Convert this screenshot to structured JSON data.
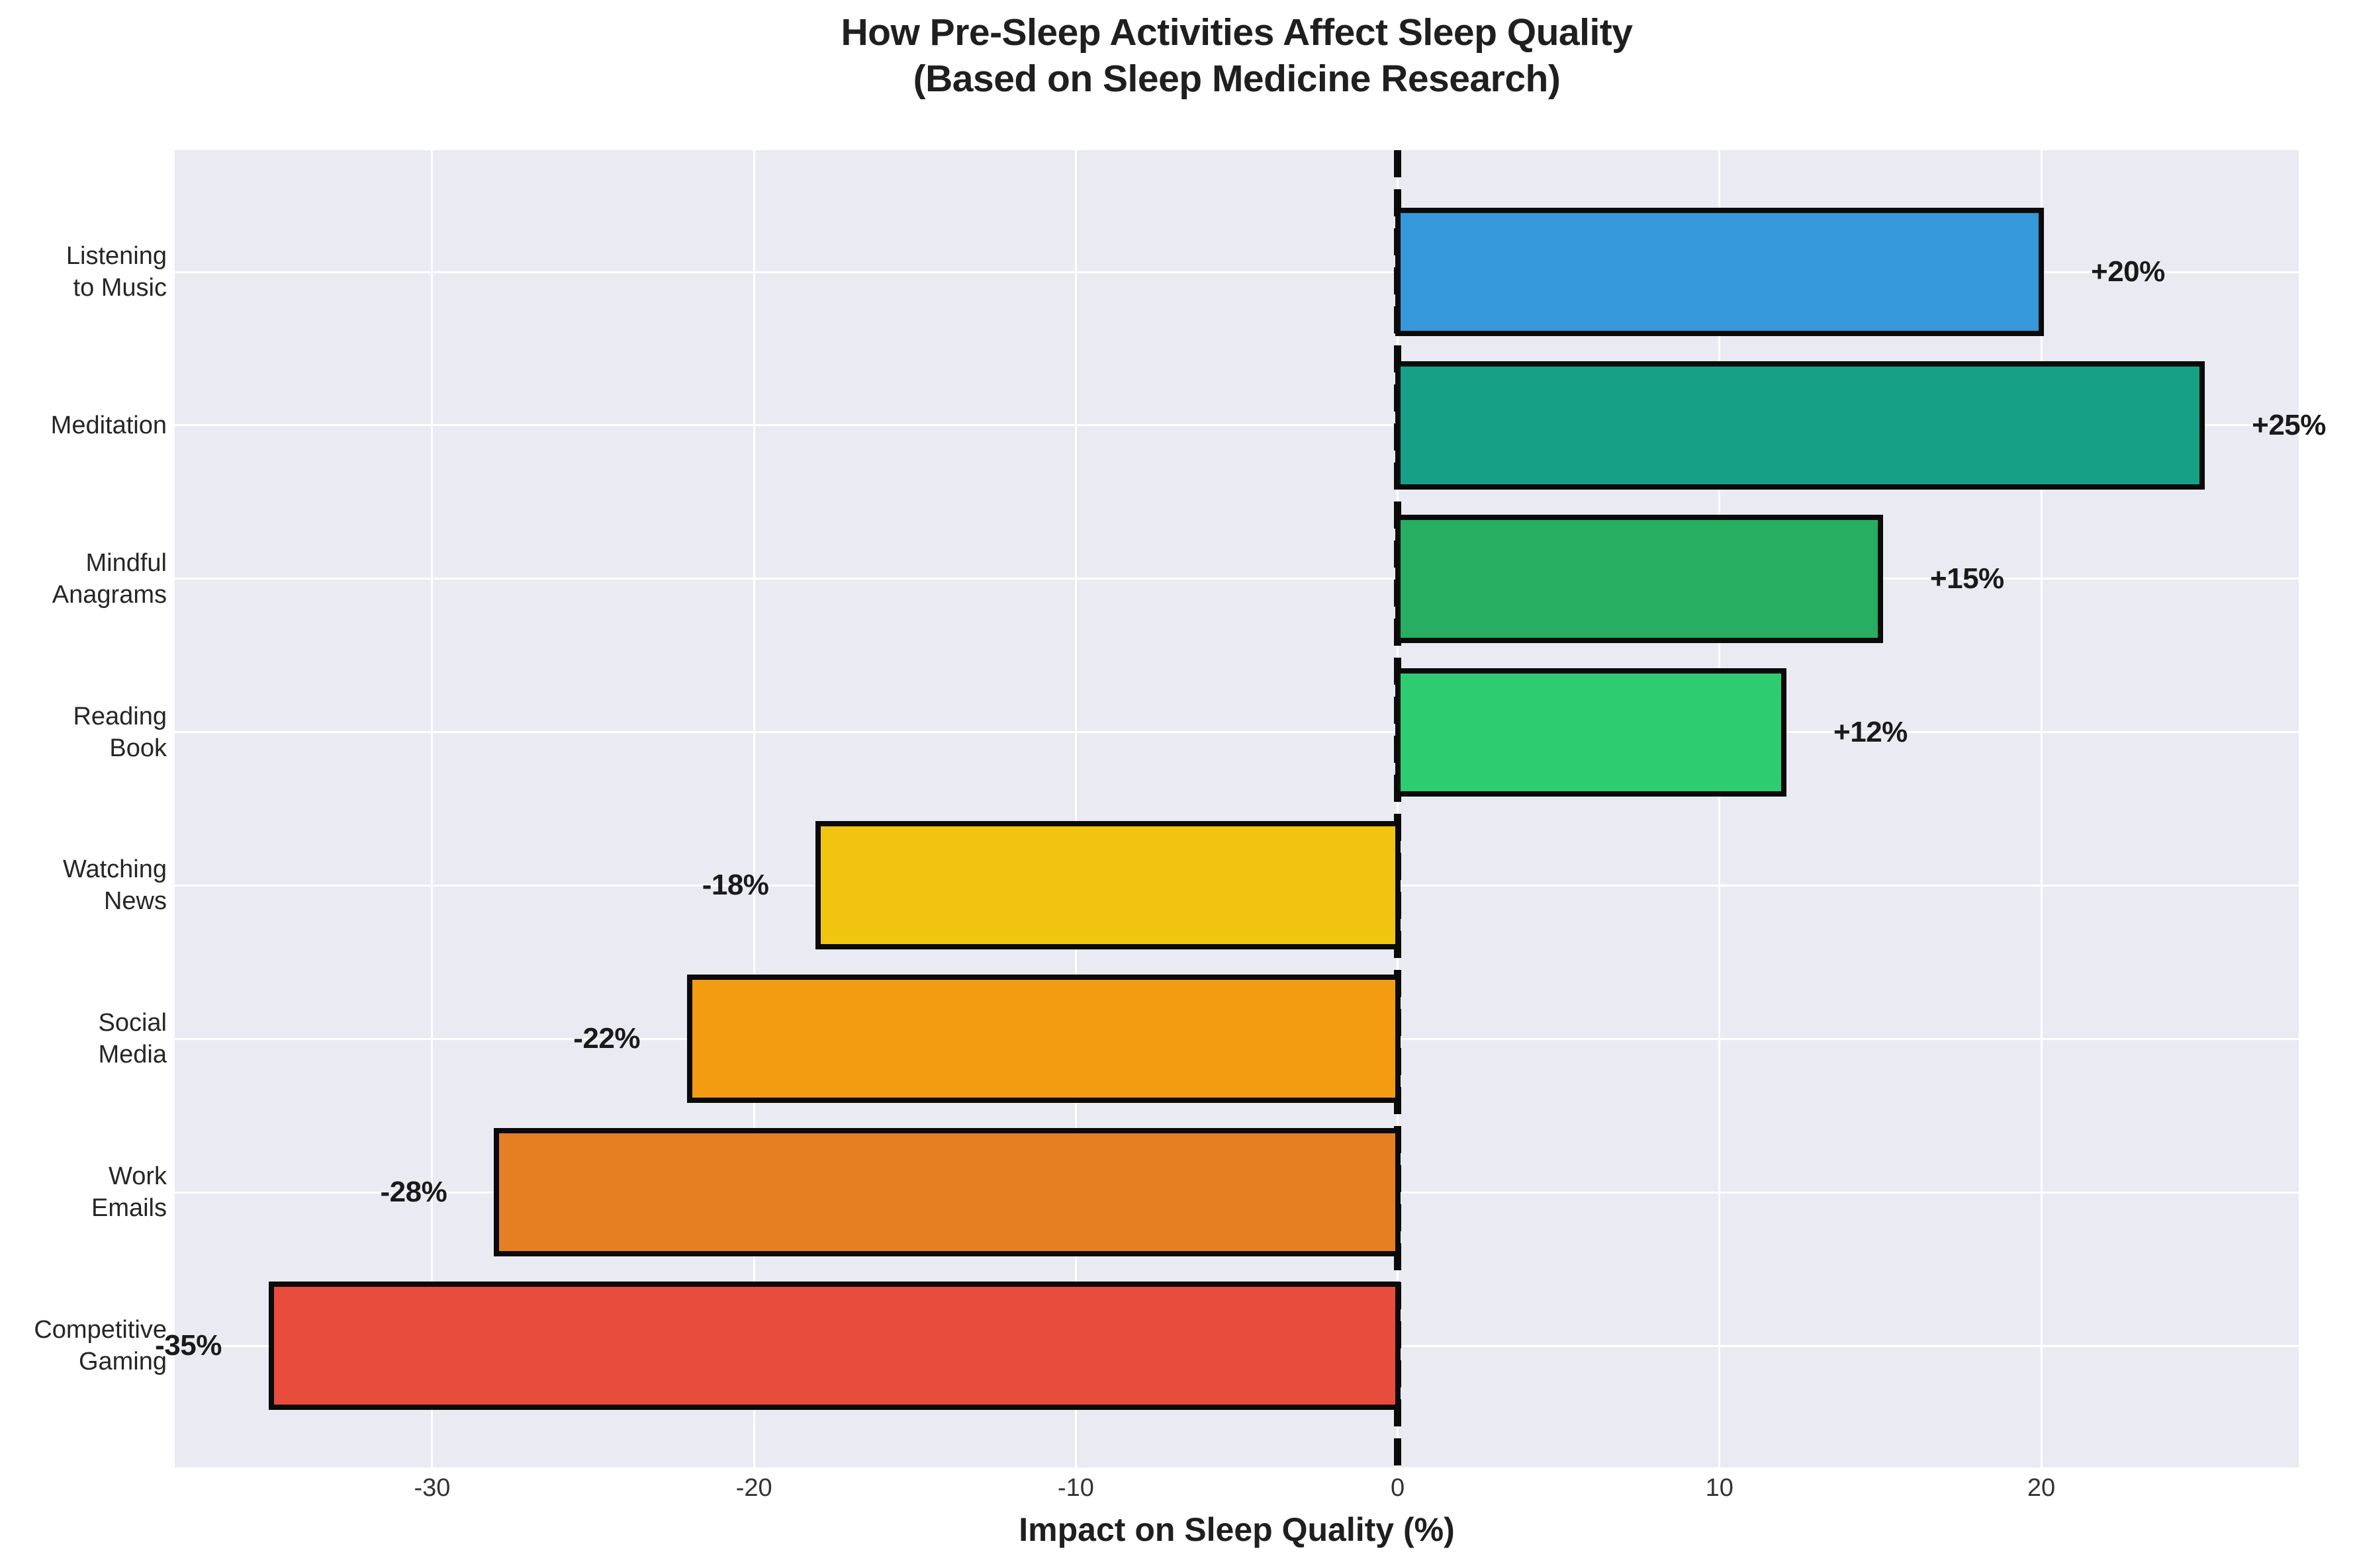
{
  "title": {
    "line1": "How Pre-Sleep Activities Affect Sleep Quality",
    "line2": "(Based on Sleep Medicine Research)"
  },
  "chart_data": {
    "type": "bar",
    "orientation": "horizontal",
    "title": "How Pre-Sleep Activities Affect Sleep Quality (Based on Sleep Medicine Research)",
    "xlabel": "Impact on Sleep Quality (%)",
    "xlim": [
      -38,
      28
    ],
    "xticks": [
      -30,
      -20,
      -10,
      0,
      10,
      20
    ],
    "xtick_labels": [
      "-30",
      "-20",
      "-10",
      "0",
      "10",
      "20"
    ],
    "grid": true,
    "legend": false,
    "zero_line": {
      "x": 0,
      "style": "dashed",
      "color": "#0a0a0a"
    },
    "plot_background": "#eaeaf2",
    "figure_background": "#ffffff",
    "gridline_color": "#ffffff",
    "bar_edge_color": "#0a0a0a",
    "categories": [
      "Listening\nto Music",
      "Meditation",
      "Mindful\nAnagrams",
      "Reading\nBook",
      "Watching\nNews",
      "Social\nMedia",
      "Work\nEmails",
      "Competitive\nGaming"
    ],
    "values": [
      20,
      25,
      15,
      12,
      -18,
      -22,
      -28,
      -35
    ],
    "value_labels": [
      "+20%",
      "+25%",
      "+15%",
      "+12%",
      "-18%",
      "-22%",
      "-28%",
      "-35%"
    ],
    "bar_colors": [
      "#3498db",
      "#16a085",
      "#27ae60",
      "#2ecc71",
      "#f1c40f",
      "#f39c12",
      "#e67e22",
      "#e74c3c"
    ]
  }
}
